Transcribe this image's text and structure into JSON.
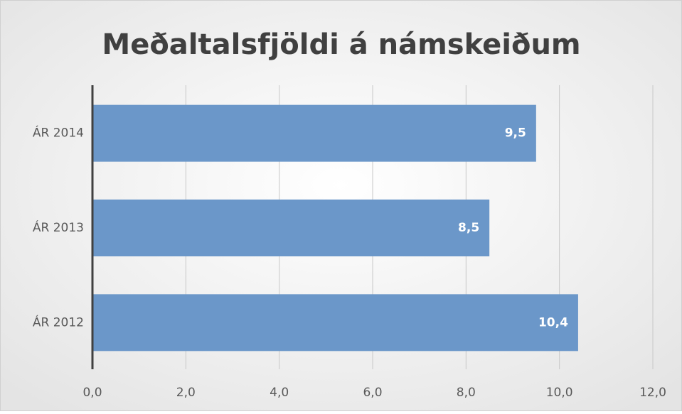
{
  "chart_data": {
    "type": "barh",
    "title": "Meðaltalsfjöldi á námskeiðum",
    "categories": [
      "ÁR 2014",
      "ÁR 2013",
      "ÁR 2012"
    ],
    "values": [
      9.5,
      8.5,
      10.4
    ],
    "value_labels": [
      "9,5",
      "8,5",
      "10,4"
    ],
    "color": "#6b97c9",
    "xlim": [
      0,
      12
    ],
    "xticks": [
      {
        "value": 0,
        "label": "0,0"
      },
      {
        "value": 2,
        "label": "2,0"
      },
      {
        "value": 4,
        "label": "4,0"
      },
      {
        "value": 6,
        "label": "6,0"
      },
      {
        "value": 8,
        "label": "8,0"
      },
      {
        "value": 10,
        "label": "10,0"
      },
      {
        "value": 12,
        "label": "12,0"
      }
    ],
    "grid": true
  }
}
